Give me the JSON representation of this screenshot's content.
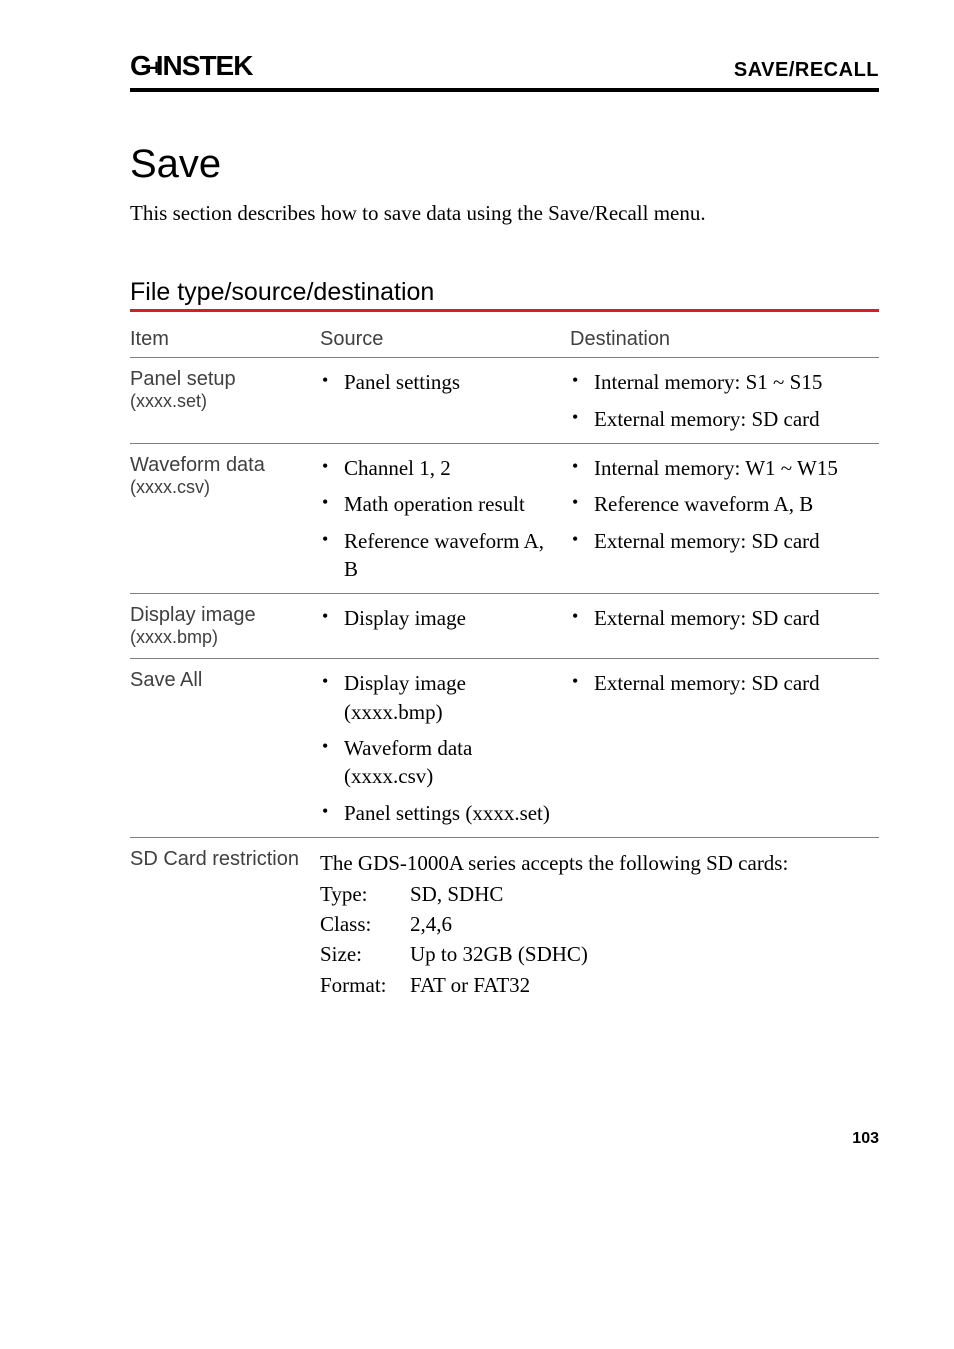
{
  "header": {
    "logo_text_left": "G",
    "logo_text_right": "INSTEK",
    "right_label": "SAVE/RECALL"
  },
  "title": "Save",
  "intro": "This section describes how to save data using the Save/Recall menu.",
  "section_heading": "File type/source/destination",
  "table": {
    "columns": {
      "item": "Item",
      "source": "Source",
      "destination": "Destination"
    },
    "rows": [
      {
        "item": "Panel setup",
        "item_ext": "(xxxx.set)",
        "source": [
          "Panel settings"
        ],
        "destination": [
          "Internal memory: S1 ~ S15",
          "External memory: SD card"
        ]
      },
      {
        "item": "Waveform data",
        "item_ext": "(xxxx.csv)",
        "source": [
          "Channel 1, 2",
          "Math operation result",
          "Reference waveform A, B"
        ],
        "destination": [
          "Internal memory: W1 ~ W15",
          "Reference waveform A, B",
          "External memory: SD card"
        ]
      },
      {
        "item": "Display image",
        "item_ext": "(xxxx.bmp)",
        "source": [
          "Display image"
        ],
        "destination": [
          "External memory: SD card"
        ]
      },
      {
        "item": "Save All",
        "item_ext": "",
        "source": [
          "Display image (xxxx.bmp)",
          "Waveform data (xxxx.csv)",
          "Panel settings (xxxx.set)"
        ],
        "destination": [
          "External memory: SD card"
        ]
      }
    ],
    "sdcard": {
      "label": "SD Card restriction",
      "intro": "The GDS-1000A series accepts the following SD cards:",
      "specs": [
        {
          "k": "Type:",
          "v": "SD, SDHC"
        },
        {
          "k": "Class:",
          "v": "2,4,6"
        },
        {
          "k": "Size:",
          "v": "Up to 32GB (SDHC)"
        },
        {
          "k": "Format:",
          "v": "FAT or FAT32"
        }
      ]
    }
  },
  "page_number": "103",
  "colors": {
    "rule": "#000000",
    "accent": "#d02030",
    "grid": "#808080",
    "muted_text": "#404040",
    "background": "#ffffff"
  }
}
